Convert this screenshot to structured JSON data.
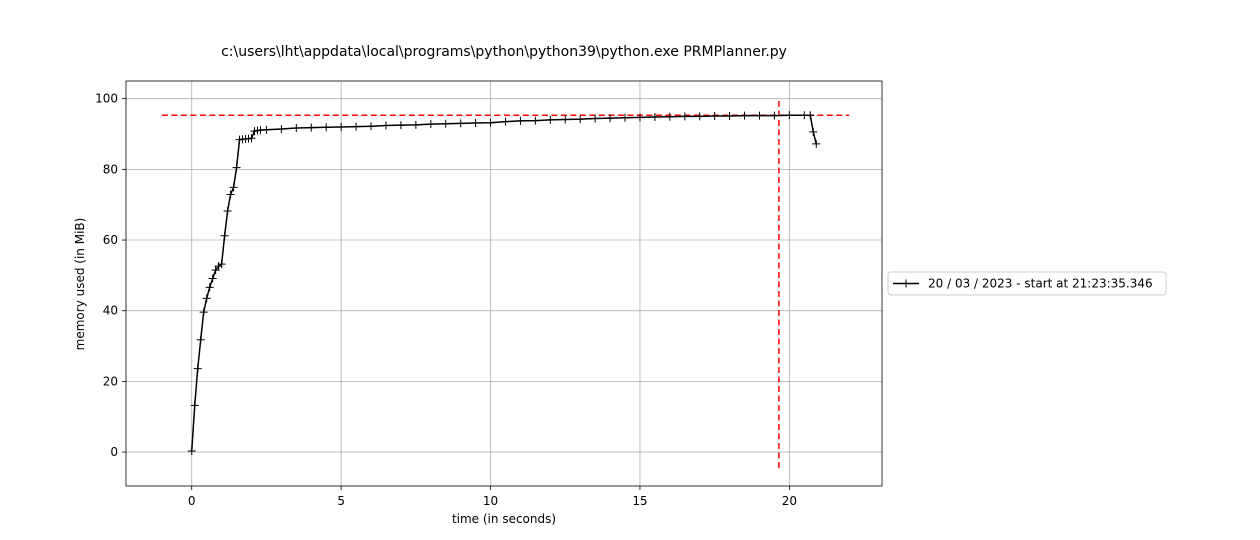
{
  "chart_data": {
    "type": "line",
    "title": "c:\\users\\lht\\appdata\\local\\programs\\python\\python39\\python.exe PRMPlanner.py",
    "xlabel": "time (in seconds)",
    "ylabel": "memory used (in MiB)",
    "xlim": [
      -2.2,
      23.1
    ],
    "ylim": [
      -9.6,
      105.0
    ],
    "x_ticks": [
      0,
      5,
      10,
      15,
      20
    ],
    "y_ticks": [
      0,
      20,
      40,
      60,
      80,
      100
    ],
    "grid": true,
    "legend_position": "right-center, outside plot",
    "series": [
      {
        "name": "20 / 03 / 2023 - start at 21:23:35.346",
        "color": "#000000",
        "marker": "plus",
        "x": [
          0.0,
          0.1,
          0.2,
          0.3,
          0.4,
          0.5,
          0.6,
          0.7,
          0.8,
          0.9,
          1.0,
          1.1,
          1.2,
          1.3,
          1.4,
          1.5,
          1.6,
          1.7,
          1.8,
          1.9,
          2.0,
          2.1,
          2.2,
          2.3,
          2.5,
          3.0,
          3.5,
          4.0,
          4.5,
          5.0,
          5.5,
          6.0,
          6.5,
          7.0,
          7.5,
          8.0,
          8.5,
          9.0,
          9.5,
          10.0,
          10.5,
          11.0,
          11.5,
          12.0,
          12.5,
          13.0,
          13.5,
          14.0,
          14.5,
          15.0,
          15.5,
          16.0,
          16.5,
          17.0,
          17.5,
          18.0,
          18.5,
          19.0,
          19.5,
          20.0,
          20.5,
          20.7,
          20.8,
          20.9
        ],
        "y": [
          0.3,
          13.2,
          23.6,
          31.8,
          39.6,
          43.5,
          46.6,
          49.1,
          51.5,
          52.6,
          53.2,
          61.2,
          68.2,
          72.9,
          74.9,
          80.5,
          88.4,
          88.5,
          88.6,
          88.7,
          88.8,
          90.8,
          91.0,
          91.1,
          91.2,
          91.4,
          91.7,
          91.8,
          91.9,
          92.0,
          92.1,
          92.2,
          92.4,
          92.5,
          92.6,
          92.8,
          92.9,
          93.0,
          93.1,
          93.2,
          93.5,
          93.7,
          93.8,
          94.0,
          94.1,
          94.2,
          94.4,
          94.5,
          94.6,
          94.7,
          94.8,
          94.9,
          95.0,
          95.0,
          95.1,
          95.1,
          95.2,
          95.2,
          95.2,
          95.3,
          95.3,
          95.3,
          90.6,
          87.2
        ]
      }
    ],
    "reference_lines": [
      {
        "orientation": "horizontal",
        "value": 95.3,
        "from": -1.0,
        "to": 22.0,
        "color": "#ff0000",
        "style": "dashed"
      },
      {
        "orientation": "vertical",
        "value": 19.65,
        "from": -4.5,
        "to": 100.0,
        "color": "#ff0000",
        "style": "dashed"
      }
    ]
  }
}
